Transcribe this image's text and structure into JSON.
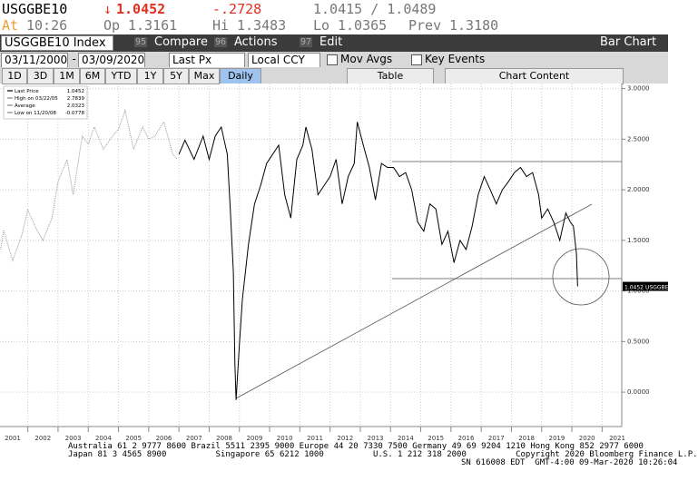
{
  "header": {
    "ticker": "USGGBE10",
    "arrow": "↓",
    "last": "1.0452",
    "change": "-.2728",
    "bid_ask": "1.0415 / 1.0489",
    "stats": [
      {
        "label": "At",
        "value": "10:26"
      },
      {
        "label": "Op",
        "value": "1.3161"
      },
      {
        "label": "Hi",
        "value": "1.3483"
      },
      {
        "label": "Lo",
        "value": "1.0365"
      },
      {
        "label": "Prev",
        "value": "1.3180"
      }
    ]
  },
  "toolbar": {
    "security": "USGGBE10 Index",
    "menus": [
      {
        "num": "95",
        "label": "Compare"
      },
      {
        "num": "96",
        "label": "Actions"
      },
      {
        "num": "97",
        "label": "Edit"
      }
    ],
    "view": "Bar Chart",
    "start": "03/11/2000",
    "dash": "-",
    "end": "03/09/2020",
    "field": "Last Px",
    "currency": "Local CCY",
    "checks": [
      "Mov Avgs",
      "Key Events"
    ],
    "ranges": [
      "1D",
      "3D",
      "1M",
      "6M",
      "YTD",
      "1Y",
      "5Y",
      "Max"
    ],
    "period": "Daily",
    "table": "Table",
    "content": "Chart Content"
  },
  "chart_data": {
    "type": "line",
    "legend_stats": [
      {
        "label": "Last Price",
        "value": "1.0452"
      },
      {
        "label": "High on 03/22/05",
        "value": "2.7839"
      },
      {
        "label": "Average",
        "value": "2.0323"
      },
      {
        "label": "Low on 11/20/08",
        "value": "-0.0778"
      }
    ],
    "xlim": [
      2001.08,
      2021.65
    ],
    "ylim": [
      -0.34,
      3.05
    ],
    "xticks": [
      2001,
      2002,
      2003,
      2004,
      2005,
      2006,
      2007,
      2008,
      2009,
      2010,
      2011,
      2012,
      2013,
      2014,
      2015,
      2016,
      2017,
      2018,
      2019,
      2020,
      2021
    ],
    "yticks": [
      {
        "value": 0,
        "label": "0.0000"
      },
      {
        "value": 0.5,
        "label": "0.5000"
      },
      {
        "value": 1,
        "label": "1.0000"
      },
      {
        "value": 1.5,
        "label": "1.5000"
      },
      {
        "value": 2,
        "label": "2.0000"
      },
      {
        "value": 2.5,
        "label": "2.5000"
      },
      {
        "value": 3,
        "label": "3.0000"
      }
    ],
    "grid": true,
    "series": [
      {
        "color": "#9a9a9a",
        "x": [
          2001.1,
          2001.2,
          2001.5,
          2001.8,
          2002.0,
          2002.3,
          2002.5,
          2002.8,
          2003.0,
          2003.3,
          2003.5,
          2003.8,
          2004.0,
          2004.2,
          2004.5,
          2004.8,
          2005.0,
          2005.22,
          2005.5,
          2005.8,
          2006.0,
          2006.2,
          2006.5,
          2006.8,
          2006.95
        ],
        "values": [
          1.41,
          1.6,
          1.3,
          1.55,
          1.8,
          1.6,
          1.5,
          1.72,
          2.08,
          2.3,
          1.95,
          2.53,
          2.45,
          2.62,
          2.4,
          2.53,
          2.6,
          2.7839,
          2.4,
          2.62,
          2.5,
          2.53,
          2.67,
          2.35,
          2.3
        ]
      },
      {
        "color": "#000000",
        "x": [
          2007.0,
          2007.2,
          2007.5,
          2007.8,
          2008.0,
          2008.2,
          2008.4,
          2008.6,
          2008.7,
          2008.8,
          2008.85,
          2008.89,
          2009.0,
          2009.1,
          2009.3,
          2009.5,
          2009.7,
          2009.9,
          2010.1,
          2010.3,
          2010.5,
          2010.7,
          2010.9,
          2011.1,
          2011.2,
          2011.4,
          2011.6,
          2011.8,
          2012.0,
          2012.2,
          2012.4,
          2012.6,
          2012.8,
          2012.9,
          2013.1,
          2013.3,
          2013.5,
          2013.7,
          2013.9,
          2014.1,
          2014.3,
          2014.5,
          2014.7,
          2014.9,
          2015.1,
          2015.3,
          2015.5,
          2015.7,
          2015.9,
          2016.1,
          2016.3,
          2016.5,
          2016.7,
          2016.9,
          2017.1,
          2017.3,
          2017.5,
          2017.7,
          2017.9,
          2018.1,
          2018.3,
          2018.5,
          2018.7,
          2018.9,
          2019.0,
          2019.2,
          2019.4,
          2019.6,
          2019.8,
          2019.95,
          2020.05,
          2020.15,
          2020.19
        ],
        "values": [
          2.35,
          2.49,
          2.3,
          2.53,
          2.3,
          2.53,
          2.62,
          2.35,
          1.8,
          1.19,
          0.29,
          -0.0778,
          0.47,
          0.92,
          1.46,
          1.86,
          2.04,
          2.26,
          2.35,
          2.44,
          1.95,
          1.72,
          2.3,
          2.44,
          2.62,
          2.4,
          1.95,
          2.04,
          2.13,
          2.3,
          1.86,
          2.13,
          2.26,
          2.67,
          2.44,
          2.22,
          1.9,
          2.26,
          2.22,
          2.22,
          2.13,
          2.17,
          2.0,
          1.68,
          1.59,
          1.86,
          1.81,
          1.46,
          1.59,
          1.28,
          1.5,
          1.41,
          1.64,
          1.95,
          2.13,
          2.0,
          1.86,
          2.0,
          2.08,
          2.17,
          2.22,
          2.13,
          2.17,
          1.95,
          1.72,
          1.81,
          1.68,
          1.5,
          1.77,
          1.68,
          1.64,
          1.37,
          1.0452
        ]
      }
    ]
  },
  "footer": {
    "line1": "Australia 61 2 9777 8600 Brazil 5511 2395 9000 Europe 44 20 7330 7500 Germany 49 69 9204 1210 Hong Kong 852 2977 6000",
    "line2": "Japan 81 3 4565 8900          Singapore 65 6212 1000          U.S. 1 212 318 2000          Copyright 2020 Bloomberg Finance L.P.",
    "line3": "SN 616008 EDT  GMT-4:00 09-Mar-2020 10:26:04"
  }
}
